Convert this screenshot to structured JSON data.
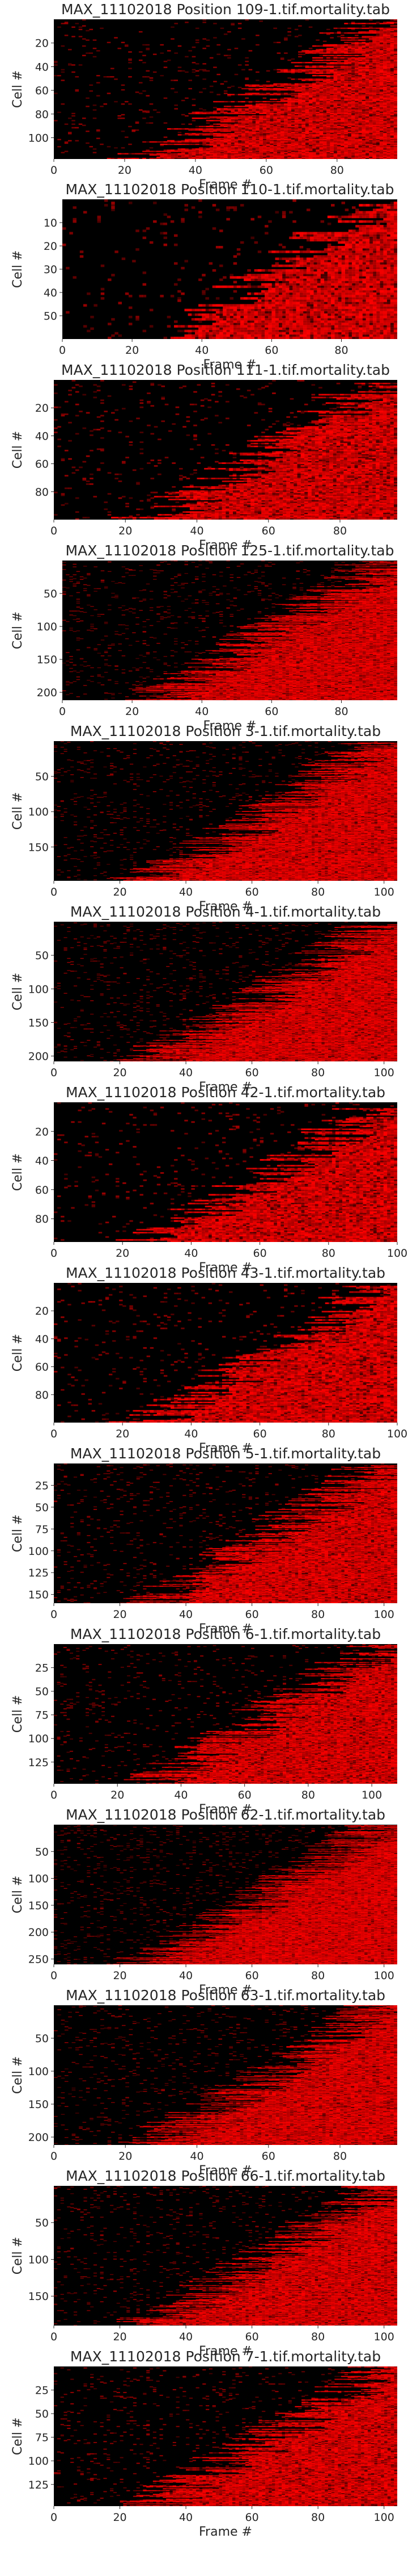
{
  "chart_data": [
    {
      "type": "heatmap",
      "title": "MAX_11102018 Position 109-1.tif.mortality.tab",
      "xlabel": "Frame #",
      "ylabel": "Cell #",
      "xlim": [
        0,
        97
      ],
      "ylim": [
        0,
        118
      ],
      "xticks": [
        0,
        20,
        40,
        60,
        80
      ],
      "yticks": [
        20,
        40,
        60,
        80,
        100
      ],
      "colormap": [
        "#000000",
        "#ff0000"
      ],
      "grid": false
    },
    {
      "type": "heatmap",
      "title": "MAX_11102018 Position 110-1.tif.mortality.tab",
      "xlabel": "Frame #",
      "ylabel": "Cell #",
      "xlim": [
        0,
        96
      ],
      "ylim": [
        0,
        60
      ],
      "xticks": [
        0,
        20,
        40,
        60,
        80
      ],
      "yticks": [
        10,
        20,
        30,
        40,
        50
      ],
      "colormap": [
        "#000000",
        "#ff0000"
      ],
      "grid": false
    },
    {
      "type": "heatmap",
      "title": "MAX_11102018 Position 111-1.tif.mortality.tab",
      "xlabel": "Frame #",
      "ylabel": "Cell #",
      "xlim": [
        0,
        96
      ],
      "ylim": [
        0,
        100
      ],
      "xticks": [
        0,
        20,
        40,
        60,
        80
      ],
      "yticks": [
        20,
        40,
        60,
        80
      ],
      "colormap": [
        "#000000",
        "#ff0000"
      ],
      "grid": false
    },
    {
      "type": "heatmap",
      "title": "MAX_11102018 Position 125-1.tif.mortality.tab",
      "xlabel": "Frame #",
      "ylabel": "Cell #",
      "xlim": [
        0,
        96
      ],
      "ylim": [
        0,
        212
      ],
      "xticks": [
        0,
        20,
        40,
        60,
        80
      ],
      "yticks": [
        50,
        100,
        150,
        200
      ],
      "colormap": [
        "#000000",
        "#ff0000"
      ],
      "grid": false
    },
    {
      "type": "heatmap",
      "title": "MAX_11102018 Position 3-1.tif.mortality.tab",
      "xlabel": "Frame #",
      "ylabel": "Cell #",
      "xlim": [
        0,
        104
      ],
      "ylim": [
        0,
        198
      ],
      "xticks": [
        0,
        20,
        40,
        60,
        80,
        100
      ],
      "yticks": [
        50,
        100,
        150
      ],
      "colormap": [
        "#000000",
        "#ff0000"
      ],
      "grid": false
    },
    {
      "type": "heatmap",
      "title": "MAX_11102018 Position 4-1.tif.mortality.tab",
      "xlabel": "Frame #",
      "ylabel": "Cell #",
      "xlim": [
        0,
        104
      ],
      "ylim": [
        0,
        208
      ],
      "xticks": [
        0,
        20,
        40,
        60,
        80,
        100
      ],
      "yticks": [
        50,
        100,
        150,
        200
      ],
      "colormap": [
        "#000000",
        "#ff0000"
      ],
      "grid": false
    },
    {
      "type": "heatmap",
      "title": "MAX_11102018 Position 42-1.tif.mortality.tab",
      "xlabel": "Frame #",
      "ylabel": "Cell #",
      "xlim": [
        0,
        100
      ],
      "ylim": [
        0,
        96
      ],
      "xticks": [
        0,
        20,
        40,
        60,
        80,
        100
      ],
      "yticks": [
        20,
        40,
        60,
        80
      ],
      "colormap": [
        "#000000",
        "#ff0000"
      ],
      "grid": false
    },
    {
      "type": "heatmap",
      "title": "MAX_11102018 Position 43-1.tif.mortality.tab",
      "xlabel": "Frame #",
      "ylabel": "Cell #",
      "xlim": [
        0,
        100
      ],
      "ylim": [
        0,
        100
      ],
      "xticks": [
        0,
        20,
        40,
        60,
        80,
        100
      ],
      "yticks": [
        20,
        40,
        60,
        80
      ],
      "colormap": [
        "#000000",
        "#ff0000"
      ],
      "grid": false
    },
    {
      "type": "heatmap",
      "title": "MAX_11102018 Position 5-1.tif.mortality.tab",
      "xlabel": "Frame #",
      "ylabel": "Cell #",
      "xlim": [
        0,
        104
      ],
      "ylim": [
        0,
        160
      ],
      "xticks": [
        0,
        20,
        40,
        60,
        80,
        100
      ],
      "yticks": [
        25,
        50,
        75,
        100,
        125,
        150
      ],
      "colormap": [
        "#000000",
        "#ff0000"
      ],
      "grid": false
    },
    {
      "type": "heatmap",
      "title": "MAX_11102018 Position 6-1.tif.mortality.tab",
      "xlabel": "Frame #",
      "ylabel": "Cell #",
      "xlim": [
        0,
        108
      ],
      "ylim": [
        0,
        148
      ],
      "xticks": [
        0,
        20,
        40,
        60,
        80,
        100
      ],
      "yticks": [
        25,
        50,
        75,
        100,
        125
      ],
      "colormap": [
        "#000000",
        "#ff0000"
      ],
      "grid": false
    },
    {
      "type": "heatmap",
      "title": "MAX_11102018 Position 62-1.tif.mortality.tab",
      "xlabel": "Frame #",
      "ylabel": "Cell #",
      "xlim": [
        0,
        104
      ],
      "ylim": [
        0,
        260
      ],
      "xticks": [
        0,
        20,
        40,
        60,
        80,
        100
      ],
      "yticks": [
        50,
        100,
        150,
        200,
        250
      ],
      "colormap": [
        "#000000",
        "#ff0000"
      ],
      "grid": false
    },
    {
      "type": "heatmap",
      "title": "MAX_11102018 Position 63-1.tif.mortality.tab",
      "xlabel": "Frame #",
      "ylabel": "Cell #",
      "xlim": [
        0,
        96
      ],
      "ylim": [
        0,
        212
      ],
      "xticks": [
        0,
        20,
        40,
        60,
        80
      ],
      "yticks": [
        50,
        100,
        150,
        200
      ],
      "colormap": [
        "#000000",
        "#ff0000"
      ],
      "grid": false
    },
    {
      "type": "heatmap",
      "title": "MAX_11102018 Position 66-1.tif.mortality.tab",
      "xlabel": "Frame #",
      "ylabel": "Cell #",
      "xlim": [
        0,
        104
      ],
      "ylim": [
        0,
        190
      ],
      "xticks": [
        0,
        20,
        40,
        60,
        80,
        100
      ],
      "yticks": [
        50,
        100,
        150
      ],
      "colormap": [
        "#000000",
        "#ff0000"
      ],
      "grid": false
    },
    {
      "type": "heatmap",
      "title": "MAX_11102018 Position 7-1.tif.mortality.tab",
      "xlabel": "Frame #",
      "ylabel": "Cell #",
      "xlim": [
        0,
        104
      ],
      "ylim": [
        0,
        148
      ],
      "xticks": [
        0,
        20,
        40,
        60,
        80,
        100
      ],
      "yticks": [
        25,
        50,
        75,
        100,
        125
      ],
      "colormap": [
        "#000000",
        "#ff0000"
      ],
      "grid": false
    }
  ]
}
